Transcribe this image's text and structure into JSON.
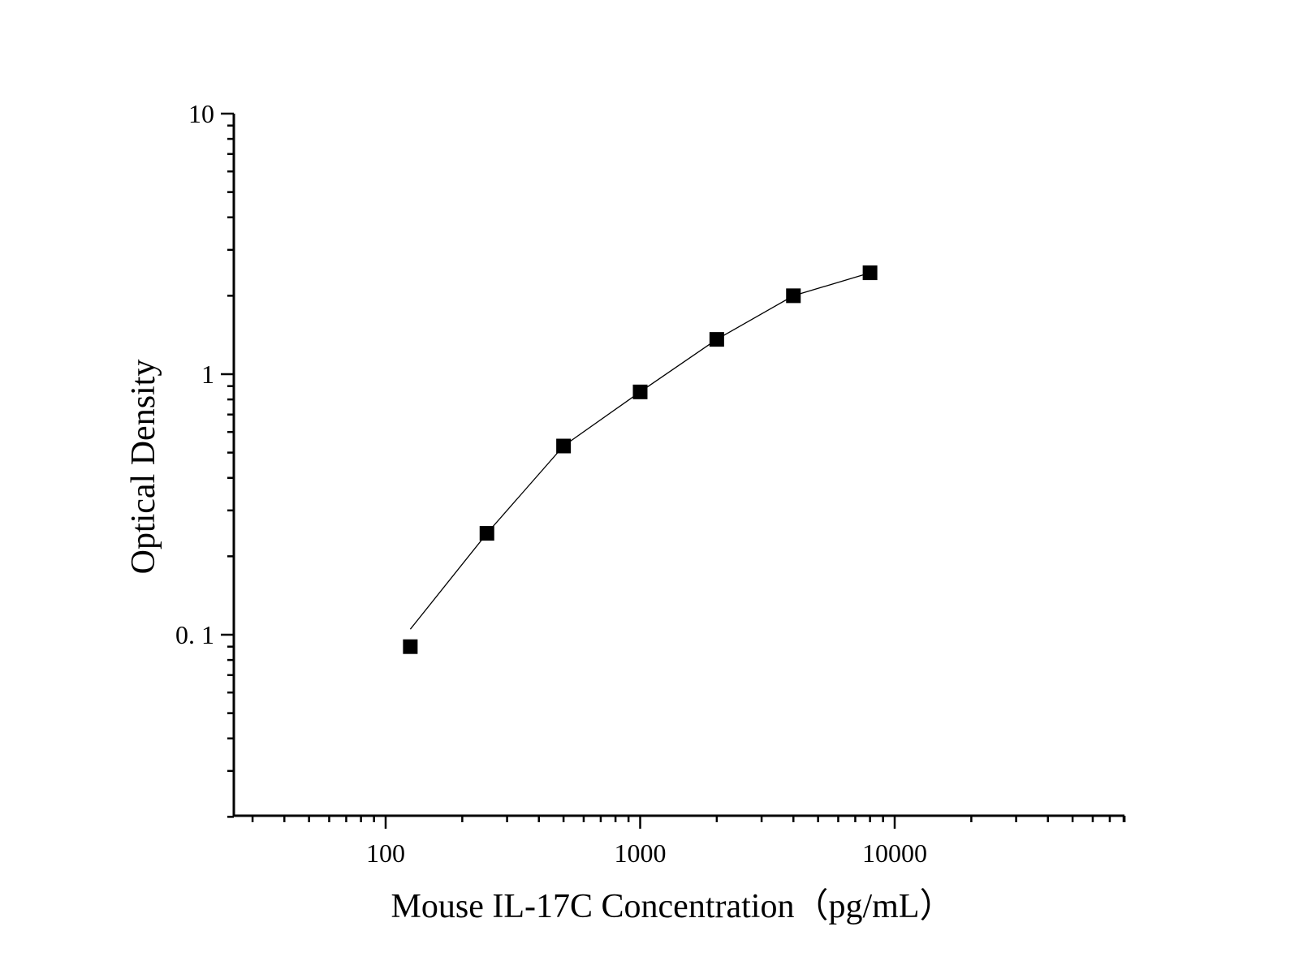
{
  "chart_data": {
    "type": "line",
    "title": "",
    "xlabel": "Mouse IL-17C Concentration（pg/mL）",
    "ylabel": "Optical Density",
    "x_scale": "log",
    "y_scale": "log",
    "xlim": [
      25,
      80000
    ],
    "ylim": [
      0.02,
      10
    ],
    "x_ticks": [
      {
        "value": 100,
        "label": "100"
      },
      {
        "value": 1000,
        "label": "1000"
      },
      {
        "value": 10000,
        "label": "10000"
      }
    ],
    "y_ticks": [
      {
        "value": 0.1,
        "label": "0. 1"
      },
      {
        "value": 1,
        "label": "1"
      },
      {
        "value": 10,
        "label": "10"
      }
    ],
    "grid": false,
    "legend": "none",
    "marker": "square",
    "color": "#000000",
    "series": [
      {
        "x": [
          125,
          250,
          500,
          1000,
          2000,
          4000,
          8000
        ],
        "y": [
          0.09,
          0.245,
          0.53,
          0.855,
          1.36,
          2.0,
          2.45
        ]
      }
    ],
    "fit_curve": {
      "x": [
        125,
        250,
        500,
        1000,
        2000,
        4000,
        8000
      ],
      "y": [
        0.105,
        0.245,
        0.53,
        0.855,
        1.36,
        2.0,
        2.45
      ]
    }
  }
}
